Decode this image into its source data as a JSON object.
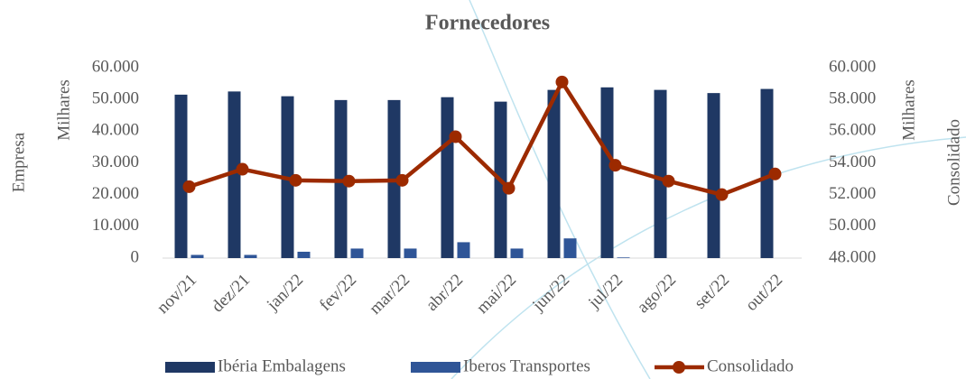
{
  "chart_data": {
    "type": "combo",
    "title": "Fornecedores",
    "ylabel": "Empresa",
    "yunit": "Milhares",
    "y2label": "Consolidado",
    "y2unit": "Milhares",
    "categories": [
      "nov/21",
      "dez/21",
      "jan/22",
      "fev/22",
      "mar/22",
      "abr/22",
      "mai/22",
      "jun/22",
      "jul/22",
      "ago/22",
      "set/22",
      "out/22"
    ],
    "series": [
      {
        "name": "Ibéria Embalagens",
        "type": "bar",
        "color": "#1f3864",
        "values": [
          51500,
          52500,
          51000,
          49800,
          49800,
          50700,
          49300,
          53000,
          53800,
          53000,
          52000,
          53300
        ]
      },
      {
        "name": "Iberos Transportes",
        "type": "bar",
        "color": "#2f5597",
        "values": [
          1000,
          1000,
          2000,
          3000,
          3000,
          5000,
          3000,
          6200,
          200,
          0,
          0,
          0
        ]
      },
      {
        "name": "Consolidado",
        "type": "line",
        "axis": "y2",
        "color": "#9c2a00",
        "values": [
          52500,
          53600,
          52900,
          52850,
          52900,
          55650,
          52400,
          59100,
          53850,
          52850,
          52000,
          53300
        ]
      }
    ],
    "ylim": [
      0,
      60000
    ],
    "yticks": [
      0,
      {
        "value": 10000,
        "label": "10.000"
      },
      {
        "value": 20000,
        "label": "20.000"
      },
      {
        "value": 30000,
        "label": "30.000"
      },
      {
        "value": 40000,
        "label": "40.000"
      },
      {
        "value": 50000,
        "label": "50.000"
      },
      {
        "value": 60000,
        "label": "60.000"
      }
    ],
    "y2lim": [
      48000,
      60000
    ],
    "y2ticks": [
      {
        "value": 48000,
        "label": "48.000"
      },
      {
        "value": 50000,
        "label": "50.000"
      },
      {
        "value": 52000,
        "label": "52.000"
      },
      {
        "value": 54000,
        "label": "54.000"
      },
      {
        "value": 56000,
        "label": "56.000"
      },
      {
        "value": 58000,
        "label": "58.000"
      },
      {
        "value": 60000,
        "label": "60.000"
      }
    ],
    "legend": "bottom"
  }
}
